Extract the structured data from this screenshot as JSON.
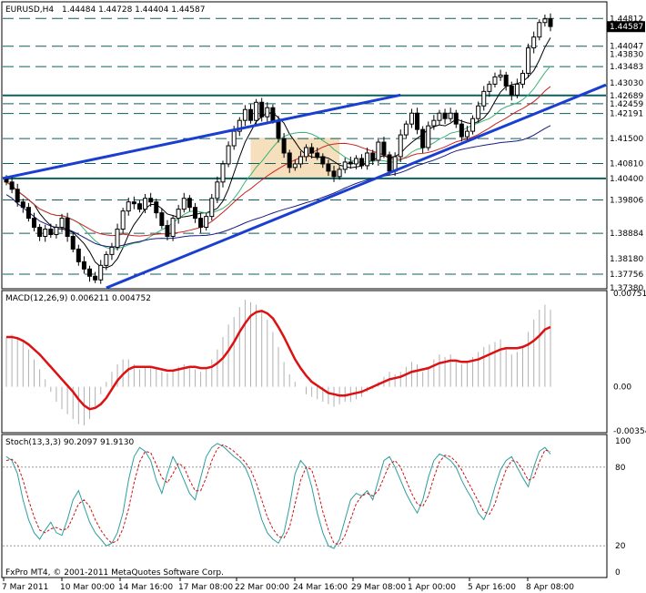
{
  "main_header": {
    "symbol": "EURUSD,H4",
    "ohlc": "1.44484 1.44728 1.44404 1.44587"
  },
  "macd_header": "MACD(12,26,9) 0.006211 0.004752",
  "stoch_header": "Stoch(13,3,3) 90.2097 91.9130",
  "copyright": "FxPro MT4, © 2001-2011 MetaQuotes Software Corp.",
  "colors": {
    "channel": "#1a3fd0",
    "level": "#0f5f5f",
    "candle": "#000000",
    "ma_fast": "#000000",
    "ma_green": "#3cb371",
    "ma_red": "#cc2222",
    "ma_navy": "#1a1a80",
    "macd_signal": "#dd1111",
    "macd_hist": "#b0b0b0",
    "stoch_main": "#2e9e9e",
    "stoch_signal": "#cc1111",
    "box_fill": "#f5d9b0"
  },
  "chart_data": [
    {
      "type": "candlestick",
      "title": "EURUSD,H4",
      "ylim": [
        1.3738,
        1.4497
      ],
      "price_scale_labels": [
        "1.44812",
        "1.44587",
        "1.44047",
        "1.43830",
        "1.43483",
        "1.43030",
        "1.42689",
        "1.42459",
        "1.42191",
        "1.41500",
        "1.40810",
        "1.40400",
        "1.39806",
        "1.38884",
        "1.38180",
        "1.37756",
        "1.37380"
      ],
      "horizontal_levels": [
        1.44812,
        1.44047,
        1.43483,
        1.42689,
        1.42459,
        1.42191,
        1.415,
        1.4081,
        1.404,
        1.39806,
        1.38884,
        1.37756
      ],
      "bold_levels": [
        1.42689,
        1.404
      ],
      "current_price": 1.44587,
      "trend_channel_top": {
        "from_price": 1.404,
        "to_price": 1.427
      },
      "trend_channel_bottom": {
        "from_price": 1.3738,
        "to_price": 1.4298
      },
      "close_series": [
        1.403,
        1.401,
        1.3975,
        1.396,
        1.393,
        1.3905,
        1.388,
        1.39,
        1.3885,
        1.3905,
        1.393,
        1.388,
        1.3845,
        1.381,
        1.379,
        1.377,
        1.376,
        1.38,
        1.383,
        1.385,
        1.39,
        1.395,
        1.3975,
        1.397,
        1.3955,
        1.3985,
        1.3975,
        1.3945,
        1.391,
        1.388,
        1.393,
        1.3955,
        1.3985,
        1.396,
        1.393,
        1.3905,
        1.3935,
        1.3985,
        1.403,
        1.408,
        1.413,
        1.417,
        1.42,
        1.423,
        1.42,
        1.425,
        1.421,
        1.4235,
        1.42,
        1.415,
        1.411,
        1.407,
        1.408,
        1.41,
        1.4125,
        1.411,
        1.41,
        1.408,
        1.406,
        1.4045,
        1.4065,
        1.4085,
        1.408,
        1.4095,
        1.4075,
        1.411,
        1.409,
        1.414,
        1.4105,
        1.406,
        1.41,
        1.416,
        1.419,
        1.422,
        1.4175,
        1.4125,
        1.4185,
        1.42,
        1.422,
        1.4205,
        1.422,
        1.419,
        1.4155,
        1.417,
        1.4205,
        1.424,
        1.428,
        1.43,
        1.432,
        1.4325,
        1.4295,
        1.427,
        1.43,
        1.433,
        1.44,
        1.443,
        1.447,
        1.448,
        1.4459
      ]
    },
    {
      "type": "line",
      "title": "MACD(12,26,9)",
      "ylim": [
        -0.00354,
        0.00751
      ],
      "tick_labels": [
        "0.00751",
        "0.00",
        "-0.00354"
      ],
      "histogram": [
        0.004,
        0.0042,
        0.004,
        0.0036,
        0.003,
        0.0022,
        0.0014,
        0.0006,
        -0.0004,
        -0.0012,
        -0.0018,
        -0.0022,
        -0.0026,
        -0.003,
        -0.0031,
        -0.0026,
        -0.0016,
        -0.0006,
        0.0004,
        0.0012,
        0.0018,
        0.0022,
        0.0022,
        0.0018,
        0.0014,
        0.0016,
        0.0016,
        0.0014,
        0.0012,
        0.0011,
        0.0014,
        0.0016,
        0.0018,
        0.0016,
        0.0014,
        0.0012,
        0.0014,
        0.0022,
        0.003,
        0.004,
        0.005,
        0.0056,
        0.0064,
        0.007,
        0.0068,
        0.0066,
        0.006,
        0.0054,
        0.0044,
        0.0032,
        0.002,
        0.001,
        0.0004,
        0.0,
        -0.0006,
        -0.0008,
        -0.001,
        -0.0012,
        -0.0014,
        -0.0016,
        -0.0014,
        -0.0012,
        -0.0012,
        -0.001,
        -0.0008,
        -0.0004,
        -0.0002,
        0.0004,
        0.0008,
        0.0012,
        0.001,
        0.0012,
        0.0016,
        0.002,
        0.0018,
        0.0012,
        0.0016,
        0.0022,
        0.0026,
        0.0024,
        0.0026,
        0.0022,
        0.0018,
        0.002,
        0.0024,
        0.0028,
        0.0032,
        0.0034,
        0.0036,
        0.0038,
        0.0032,
        0.0026,
        0.0028,
        0.0032,
        0.0044,
        0.0054,
        0.0062,
        0.0066,
        0.0062
      ],
      "signal": [
        0.004,
        0.004,
        0.0039,
        0.0037,
        0.0034,
        0.003,
        0.0026,
        0.0021,
        0.0016,
        0.0011,
        0.0006,
        0.0001,
        -0.0004,
        -0.001,
        -0.0015,
        -0.0018,
        -0.0017,
        -0.0014,
        -0.0009,
        -0.0002,
        0.0005,
        0.001,
        0.0014,
        0.0016,
        0.0016,
        0.0016,
        0.0016,
        0.0015,
        0.0014,
        0.0013,
        0.0013,
        0.0014,
        0.0015,
        0.0016,
        0.0016,
        0.0015,
        0.0015,
        0.0016,
        0.0019,
        0.0023,
        0.0029,
        0.0036,
        0.0044,
        0.0051,
        0.0057,
        0.006,
        0.0061,
        0.0059,
        0.0055,
        0.0048,
        0.004,
        0.0031,
        0.0022,
        0.0015,
        0.0009,
        0.0004,
        0.0001,
        -0.0002,
        -0.0005,
        -0.0006,
        -0.0007,
        -0.0007,
        -0.0006,
        -0.0005,
        -0.0004,
        -0.0002,
        0.0,
        0.0002,
        0.0004,
        0.0006,
        0.0007,
        0.0008,
        0.001,
        0.0012,
        0.0013,
        0.0014,
        0.0015,
        0.0017,
        0.0019,
        0.002,
        0.0021,
        0.0021,
        0.002,
        0.002,
        0.0021,
        0.0022,
        0.0024,
        0.0026,
        0.0028,
        0.003,
        0.0031,
        0.0031,
        0.0031,
        0.0032,
        0.0034,
        0.0037,
        0.0041,
        0.0046,
        0.0048
      ]
    },
    {
      "type": "line",
      "title": "Stoch(13,3,3)",
      "ylim": [
        0,
        100
      ],
      "tick_labels": [
        "100",
        "80",
        "20",
        "0"
      ],
      "main": [
        88,
        85,
        75,
        55,
        40,
        30,
        25,
        32,
        38,
        30,
        28,
        40,
        55,
        62,
        50,
        38,
        30,
        25,
        20,
        22,
        30,
        45,
        70,
        88,
        95,
        92,
        85,
        70,
        60,
        75,
        88,
        80,
        70,
        60,
        55,
        72,
        88,
        95,
        98,
        96,
        92,
        88,
        85,
        80,
        70,
        55,
        40,
        30,
        25,
        22,
        30,
        50,
        75,
        85,
        80,
        65,
        45,
        30,
        20,
        18,
        25,
        40,
        55,
        60,
        58,
        62,
        55,
        70,
        85,
        88,
        80,
        70,
        60,
        52,
        45,
        55,
        72,
        85,
        90,
        88,
        85,
        80,
        70,
        62,
        55,
        45,
        40,
        50,
        65,
        78,
        85,
        88,
        80,
        72,
        65,
        80,
        92,
        95,
        90
      ],
      "signal": [
        85,
        86,
        82,
        70,
        55,
        42,
        32,
        30,
        33,
        34,
        32,
        33,
        42,
        52,
        55,
        50,
        40,
        32,
        26,
        22,
        24,
        33,
        48,
        68,
        84,
        92,
        91,
        82,
        72,
        68,
        75,
        83,
        80,
        70,
        62,
        62,
        72,
        85,
        94,
        97,
        95,
        92,
        88,
        84,
        78,
        68,
        55,
        42,
        33,
        27,
        26,
        34,
        52,
        70,
        80,
        78,
        64,
        46,
        32,
        22,
        21,
        28,
        40,
        52,
        58,
        60,
        58,
        62,
        72,
        82,
        85,
        80,
        70,
        60,
        52,
        50,
        58,
        72,
        84,
        89,
        88,
        84,
        78,
        70,
        62,
        54,
        46,
        44,
        52,
        66,
        78,
        85,
        84,
        78,
        70,
        72,
        84,
        93,
        92
      ]
    }
  ],
  "time_axis": [
    "7 Mar 2011",
    "10 Mar 00:00",
    "14 Mar 16:00",
    "17 Mar 08:00",
    "22 Mar 00:00",
    "24 Mar 16:00",
    "29 Mar 08:00",
    "1 Apr 00:00",
    "5 Apr 16:00",
    "8 Apr 08:00"
  ]
}
